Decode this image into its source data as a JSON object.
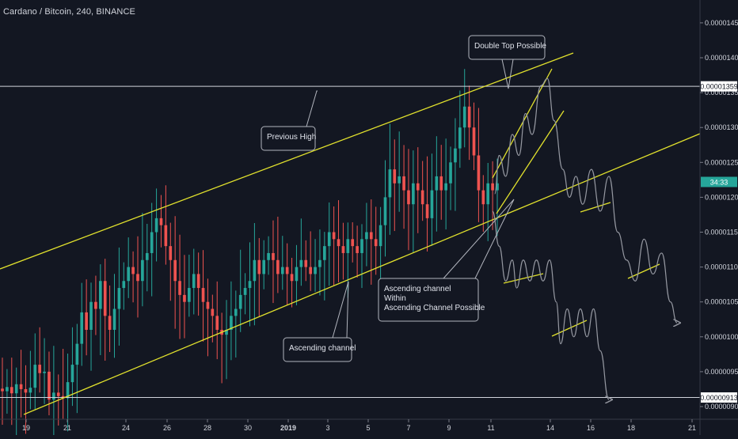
{
  "header": {
    "title": "Cardano / Bitcoin, 240, BINANCE"
  },
  "colors": {
    "background": "#131722",
    "up": "#26a69a",
    "down": "#ef5350",
    "trendline": "#e1e12d",
    "projection": "#9598a1",
    "hline": "#d1d4dc",
    "callout_border": "#b2b5be",
    "text": "#d1d4dc"
  },
  "chart_data": {
    "type": "candlestick",
    "symbol": "Cardano / Bitcoin",
    "interval": "240",
    "exchange": "BINANCE",
    "x_ticks": [
      "19",
      "21",
      "24",
      "26",
      "28",
      "30",
      "2019",
      "3",
      "5",
      "7",
      "9",
      "11",
      "14",
      "16",
      "18",
      "21"
    ],
    "y_ticks": [
      "0.00001450",
      "0.00001400",
      "0.00001350",
      "0.00001300",
      "0.00001250",
      "0.00001200",
      "0.00001150",
      "0.00001100",
      "0.00001050",
      "0.00001000",
      "0.00000950",
      "0.00000900"
    ],
    "ylim": [
      8.88e-06,
      1.495e-05
    ],
    "price_labels": {
      "previous_high": "0.00001359",
      "countdown": "34:33",
      "low": "0.00000913"
    },
    "horizontal_levels": [
      1.359e-05,
      9.13e-06
    ],
    "current_price": 1.222e-05,
    "close_path": [
      9.22e-06,
      9.28e-06,
      9.19e-06,
      9.32e-06,
      9.25e-06,
      9.2e-06,
      9.27e-06,
      9.6e-06,
      9.48e-06,
      9.5e-06,
      9.1e-06,
      9.2e-06,
      9.15e-06,
      9.12e-06,
      9.35e-06,
      9.6e-06,
      9.9e-06,
      1.035e-05,
      1.01e-05,
      1.05e-05,
      1.04e-05,
      1.08e-05,
      1.03e-05,
      1.01e-05,
      1.04e-05,
      1.07e-05,
      1.08e-05,
      1.1e-05,
      1.09e-05,
      1.08e-05,
      1.11e-05,
      1.12e-05,
      1.15e-05,
      1.17e-05,
      1.16e-05,
      1.13e-05,
      1.11e-05,
      1.08e-05,
      1.06e-05,
      1.05e-05,
      1.07e-05,
      1.09e-05,
      1.07e-05,
      1.05e-05,
      1.04e-05,
      1.03e-05,
      1.01e-05,
      1.003e-05,
      1.01e-05,
      1.03e-05,
      1.04e-05,
      1.06e-05,
      1.07e-05,
      1.08e-05,
      1.11e-05,
      1.09e-05,
      1.11e-05,
      1.12e-05,
      1.11e-05,
      1.09e-05,
      1.1e-05,
      1.09e-05,
      1.08e-05,
      1.1e-05,
      1.11e-05,
      1.1e-05,
      1.09e-05,
      1.1e-05,
      1.11e-05,
      1.13e-05,
      1.15e-05,
      1.14e-05,
      1.13e-05,
      1.12e-05,
      1.14e-05,
      1.13e-05,
      1.12e-05,
      1.14e-05,
      1.15e-05,
      1.14e-05,
      1.13e-05,
      1.16e-05,
      1.2e-05,
      1.24e-05,
      1.22e-05,
      1.23e-05,
      1.21e-05,
      1.19e-05,
      1.22e-05,
      1.21e-05,
      1.19e-05,
      1.17e-05,
      1.21e-05,
      1.23e-05,
      1.21e-05,
      1.22e-05,
      1.25e-05,
      1.27e-05,
      1.3e-05,
      1.33e-05,
      1.3e-05,
      1.26e-05,
      1.21e-05,
      1.19e-05,
      1.22e-05,
      1.21e-05,
      1.22e-05
    ],
    "projection_path": [
      [
        0.01,
        1.205e-05
      ],
      [
        0.03,
        1.26e-05
      ],
      [
        0.06,
        1.23e-05
      ],
      [
        0.09,
        1.29e-05
      ],
      [
        0.12,
        1.26e-05
      ],
      [
        0.15,
        1.32e-05
      ],
      [
        0.18,
        1.29e-05
      ],
      [
        0.22,
        1.36e-05
      ],
      [
        0.25,
        1.37e-05
      ],
      [
        0.28,
        1.31e-05
      ],
      [
        0.32,
        1.24e-05
      ],
      [
        0.35,
        1.2e-05
      ],
      [
        0.38,
        1.23e-05
      ],
      [
        0.41,
        1.19e-05
      ],
      [
        0.45,
        1.24e-05
      ],
      [
        0.49,
        1.18e-05
      ],
      [
        0.53,
        1.23e-05
      ],
      [
        0.57,
        1.15e-05
      ],
      [
        0.61,
        1.11e-05
      ],
      [
        0.65,
        1.08e-05
      ],
      [
        0.69,
        1.14e-05
      ],
      [
        0.73,
        1.09e-05
      ],
      [
        0.77,
        1.12e-05
      ],
      [
        0.81,
        1.05e-05
      ],
      [
        0.84,
        1.02e-05
      ]
    ],
    "alt_projection_path": [
      [
        0.0,
        1.18e-05
      ],
      [
        0.03,
        1.13e-05
      ],
      [
        0.06,
        1.08e-05
      ],
      [
        0.09,
        1.11e-05
      ],
      [
        0.11,
        1.07e-05
      ],
      [
        0.14,
        1.11e-05
      ],
      [
        0.17,
        1.08e-05
      ],
      [
        0.2,
        1.11e-05
      ],
      [
        0.23,
        1.08e-05
      ],
      [
        0.26,
        1.11e-05
      ],
      [
        0.29,
        1.05e-05
      ],
      [
        0.31,
        9.9e-06
      ],
      [
        0.34,
        1.04e-05
      ],
      [
        0.37,
        1e-05
      ],
      [
        0.4,
        1.04e-05
      ],
      [
        0.43,
        1e-05
      ],
      [
        0.46,
        1.04e-05
      ],
      [
        0.49,
        9.8e-06
      ],
      [
        0.53,
        9.1e-06
      ]
    ],
    "annotations": [
      {
        "id": "previous-high",
        "text": "Previous High"
      },
      {
        "id": "double-top",
        "text": "Double Top Possible"
      },
      {
        "id": "ascending-channel",
        "text": "Ascending channel"
      },
      {
        "id": "channel-within",
        "lines": [
          "Ascending channel",
          "Within",
          "Ascending Channel Possible"
        ]
      }
    ]
  }
}
